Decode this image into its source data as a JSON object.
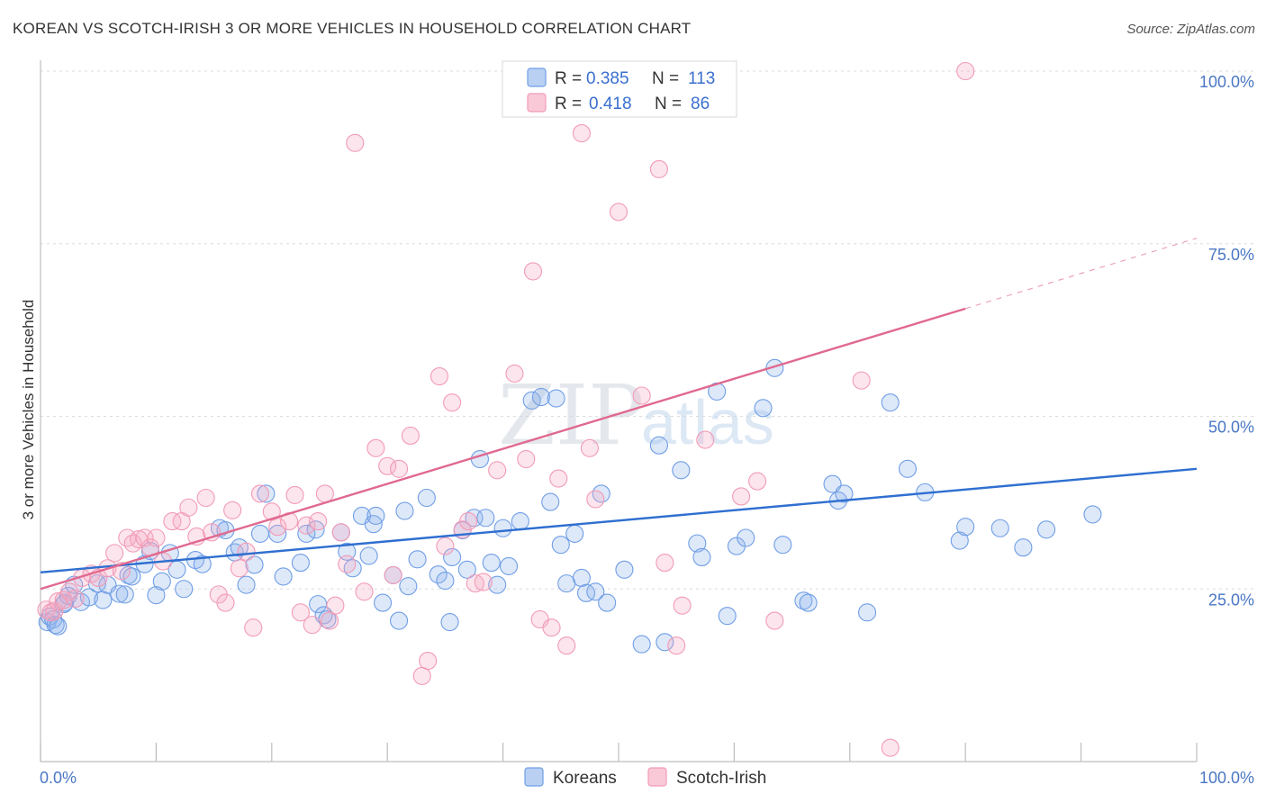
{
  "header": {
    "title": "KOREAN VS SCOTCH-IRISH 3 OR MORE VEHICLES IN HOUSEHOLD CORRELATION CHART",
    "source": "Source: ZipAtlas.com"
  },
  "watermark": {
    "part1": "ZIP",
    "part2": "atlas"
  },
  "legend": {
    "rows": [
      {
        "r_label": "R =",
        "r_value": "0.385",
        "n_label": "N =",
        "n_value": "113",
        "color": "#6f9ee6"
      },
      {
        "r_label": "R =",
        "r_value": "0.418",
        "n_label": "N =",
        "n_value": "86",
        "color": "#f29bb6"
      }
    ]
  },
  "chart_data": {
    "type": "scatter",
    "title": "KOREAN VS SCOTCH-IRISH 3 OR MORE VEHICLES IN HOUSEHOLD CORRELATION CHART",
    "xlabel": "",
    "ylabel": "3 or more Vehicles in Household",
    "xlim": [
      0,
      100
    ],
    "ylim": [
      0,
      100
    ],
    "x_tick_labels": [
      "0.0%",
      "100.0%"
    ],
    "y_ticks": [
      25,
      50,
      75,
      100
    ],
    "y_tick_labels": [
      "25.0%",
      "50.0%",
      "75.0%",
      "100.0%"
    ],
    "grid": true,
    "legend_position": "top-center",
    "series": [
      {
        "name": "Koreans",
        "color": "#6f9ee6",
        "line_color": "#2f6fd0",
        "R": 0.385,
        "N": 113,
        "trend": {
          "x": [
            0,
            100
          ],
          "y": [
            27.4,
            42.4
          ]
        },
        "points": [
          [
            0.6,
            20.2
          ],
          [
            0.8,
            21.0
          ],
          [
            1.1,
            20.6
          ],
          [
            1.3,
            19.8
          ],
          [
            1.5,
            19.6
          ],
          [
            2.0,
            22.8
          ],
          [
            2.1,
            23.0
          ],
          [
            2.4,
            24.0
          ],
          [
            2.9,
            25.6
          ],
          [
            3.5,
            23.1
          ],
          [
            4.2,
            23.8
          ],
          [
            4.9,
            25.8
          ],
          [
            5.4,
            23.4
          ],
          [
            5.8,
            25.6
          ],
          [
            6.8,
            24.3
          ],
          [
            7.3,
            24.2
          ],
          [
            7.6,
            27.0
          ],
          [
            7.9,
            26.8
          ],
          [
            9.0,
            28.6
          ],
          [
            9.5,
            30.5
          ],
          [
            10.0,
            24.1
          ],
          [
            10.5,
            26.1
          ],
          [
            11.2,
            30.2
          ],
          [
            11.8,
            27.8
          ],
          [
            12.4,
            25.0
          ],
          [
            13.4,
            29.2
          ],
          [
            14.0,
            28.6
          ],
          [
            15.5,
            33.8
          ],
          [
            16.0,
            33.5
          ],
          [
            16.8,
            30.3
          ],
          [
            17.2,
            31.0
          ],
          [
            17.8,
            25.6
          ],
          [
            18.5,
            28.5
          ],
          [
            19.0,
            33.0
          ],
          [
            19.5,
            38.8
          ],
          [
            20.5,
            33.0
          ],
          [
            21.0,
            26.8
          ],
          [
            22.5,
            28.8
          ],
          [
            23.0,
            33.0
          ],
          [
            23.8,
            33.6
          ],
          [
            24.0,
            22.8
          ],
          [
            24.5,
            21.2
          ],
          [
            24.8,
            20.6
          ],
          [
            26.0,
            33.2
          ],
          [
            26.5,
            30.4
          ],
          [
            27.0,
            28.0
          ],
          [
            27.8,
            35.6
          ],
          [
            28.4,
            29.8
          ],
          [
            28.8,
            34.4
          ],
          [
            29.0,
            35.6
          ],
          [
            29.6,
            23.0
          ],
          [
            30.5,
            27.0
          ],
          [
            31.0,
            20.4
          ],
          [
            31.5,
            36.3
          ],
          [
            31.8,
            25.4
          ],
          [
            32.6,
            29.3
          ],
          [
            33.4,
            38.2
          ],
          [
            34.4,
            27.1
          ],
          [
            35.0,
            26.2
          ],
          [
            35.4,
            20.2
          ],
          [
            35.6,
            29.6
          ],
          [
            36.5,
            33.5
          ],
          [
            36.9,
            27.8
          ],
          [
            37.5,
            35.3
          ],
          [
            38.0,
            43.8
          ],
          [
            38.5,
            35.3
          ],
          [
            39.0,
            28.8
          ],
          [
            39.5,
            25.6
          ],
          [
            40.0,
            33.8
          ],
          [
            40.5,
            28.3
          ],
          [
            41.5,
            34.8
          ],
          [
            42.5,
            52.3
          ],
          [
            43.3,
            52.8
          ],
          [
            44.1,
            37.6
          ],
          [
            44.6,
            52.6
          ],
          [
            45.0,
            31.4
          ],
          [
            45.5,
            25.8
          ],
          [
            46.2,
            33.0
          ],
          [
            46.8,
            26.6
          ],
          [
            47.2,
            24.4
          ],
          [
            48.0,
            24.6
          ],
          [
            48.5,
            38.8
          ],
          [
            49.0,
            23.0
          ],
          [
            50.5,
            27.8
          ],
          [
            52.0,
            17.0
          ],
          [
            53.5,
            45.8
          ],
          [
            54.0,
            17.3
          ],
          [
            55.4,
            42.2
          ],
          [
            56.8,
            31.6
          ],
          [
            57.2,
            29.6
          ],
          [
            58.5,
            53.6
          ],
          [
            59.4,
            21.1
          ],
          [
            60.2,
            31.2
          ],
          [
            61.0,
            32.4
          ],
          [
            62.5,
            51.2
          ],
          [
            63.5,
            57.0
          ],
          [
            64.2,
            31.4
          ],
          [
            66.0,
            23.3
          ],
          [
            66.4,
            23.0
          ],
          [
            68.5,
            40.2
          ],
          [
            69.0,
            37.8
          ],
          [
            69.5,
            38.8
          ],
          [
            71.5,
            21.6
          ],
          [
            73.5,
            52.0
          ],
          [
            75.0,
            42.4
          ],
          [
            76.5,
            39.0
          ],
          [
            79.5,
            32.0
          ],
          [
            80.0,
            34.0
          ],
          [
            83.0,
            33.8
          ],
          [
            85.0,
            31.0
          ],
          [
            87.0,
            33.6
          ],
          [
            91.0,
            35.8
          ]
        ]
      },
      {
        "name": "Scotch-Irish",
        "color": "#f29bb6",
        "line_color": "#e0698f",
        "R": 0.418,
        "N": 86,
        "trend": {
          "x": [
            0,
            80,
            100
          ],
          "y": [
            25.0,
            65.6,
            75.8
          ]
        },
        "points": [
          [
            0.5,
            22.0
          ],
          [
            0.9,
            21.6
          ],
          [
            1.2,
            21.8
          ],
          [
            1.5,
            23.2
          ],
          [
            2.0,
            23.4
          ],
          [
            2.5,
            24.6
          ],
          [
            3.0,
            23.6
          ],
          [
            3.6,
            26.6
          ],
          [
            4.4,
            27.2
          ],
          [
            5.0,
            26.6
          ],
          [
            5.8,
            28.0
          ],
          [
            6.4,
            30.2
          ],
          [
            7.0,
            27.6
          ],
          [
            7.5,
            32.4
          ],
          [
            8.0,
            31.6
          ],
          [
            8.5,
            32.2
          ],
          [
            9.0,
            32.4
          ],
          [
            9.5,
            31.0
          ],
          [
            10.0,
            32.4
          ],
          [
            10.6,
            29.0
          ],
          [
            11.4,
            34.8
          ],
          [
            12.2,
            34.8
          ],
          [
            12.8,
            36.8
          ],
          [
            13.5,
            32.6
          ],
          [
            14.3,
            38.2
          ],
          [
            14.8,
            33.2
          ],
          [
            15.4,
            24.2
          ],
          [
            16.0,
            23.0
          ],
          [
            16.6,
            36.4
          ],
          [
            17.2,
            28.0
          ],
          [
            17.8,
            30.4
          ],
          [
            18.4,
            19.4
          ],
          [
            19.0,
            38.8
          ],
          [
            20.0,
            36.2
          ],
          [
            20.5,
            34.0
          ],
          [
            21.5,
            34.8
          ],
          [
            22.0,
            38.6
          ],
          [
            22.5,
            21.6
          ],
          [
            23.0,
            34.2
          ],
          [
            23.5,
            19.8
          ],
          [
            24.0,
            34.8
          ],
          [
            24.6,
            38.8
          ],
          [
            25.0,
            20.4
          ],
          [
            25.5,
            22.6
          ],
          [
            26.0,
            33.2
          ],
          [
            26.5,
            28.6
          ],
          [
            27.2,
            89.6
          ],
          [
            28.0,
            24.6
          ],
          [
            29.0,
            45.4
          ],
          [
            30.0,
            42.8
          ],
          [
            30.5,
            27.0
          ],
          [
            31.0,
            42.4
          ],
          [
            32.0,
            47.2
          ],
          [
            33.0,
            12.4
          ],
          [
            33.5,
            14.6
          ],
          [
            34.5,
            55.8
          ],
          [
            35.0,
            31.2
          ],
          [
            35.6,
            52.0
          ],
          [
            36.5,
            33.6
          ],
          [
            37.0,
            34.8
          ],
          [
            37.6,
            25.8
          ],
          [
            38.3,
            26.0
          ],
          [
            39.5,
            42.2
          ],
          [
            41.0,
            56.2
          ],
          [
            42.0,
            43.8
          ],
          [
            42.6,
            71.0
          ],
          [
            43.2,
            20.6
          ],
          [
            44.2,
            19.4
          ],
          [
            44.8,
            41.0
          ],
          [
            45.5,
            16.8
          ],
          [
            46.4,
            100.0
          ],
          [
            46.8,
            91.0
          ],
          [
            47.5,
            45.4
          ],
          [
            48.0,
            38.0
          ],
          [
            50.0,
            79.6
          ],
          [
            52.0,
            53.0
          ],
          [
            53.5,
            85.8
          ],
          [
            54.0,
            28.8
          ],
          [
            55.0,
            16.8
          ],
          [
            55.5,
            22.6
          ],
          [
            57.5,
            46.6
          ],
          [
            60.6,
            38.4
          ],
          [
            62.0,
            40.6
          ],
          [
            63.5,
            20.4
          ],
          [
            71.0,
            55.2
          ],
          [
            73.5,
            2.0
          ],
          [
            80.0,
            100.0
          ]
        ]
      }
    ]
  },
  "bottom_legend": {
    "items": [
      {
        "label": "Koreans"
      },
      {
        "label": "Scotch-Irish"
      }
    ]
  }
}
